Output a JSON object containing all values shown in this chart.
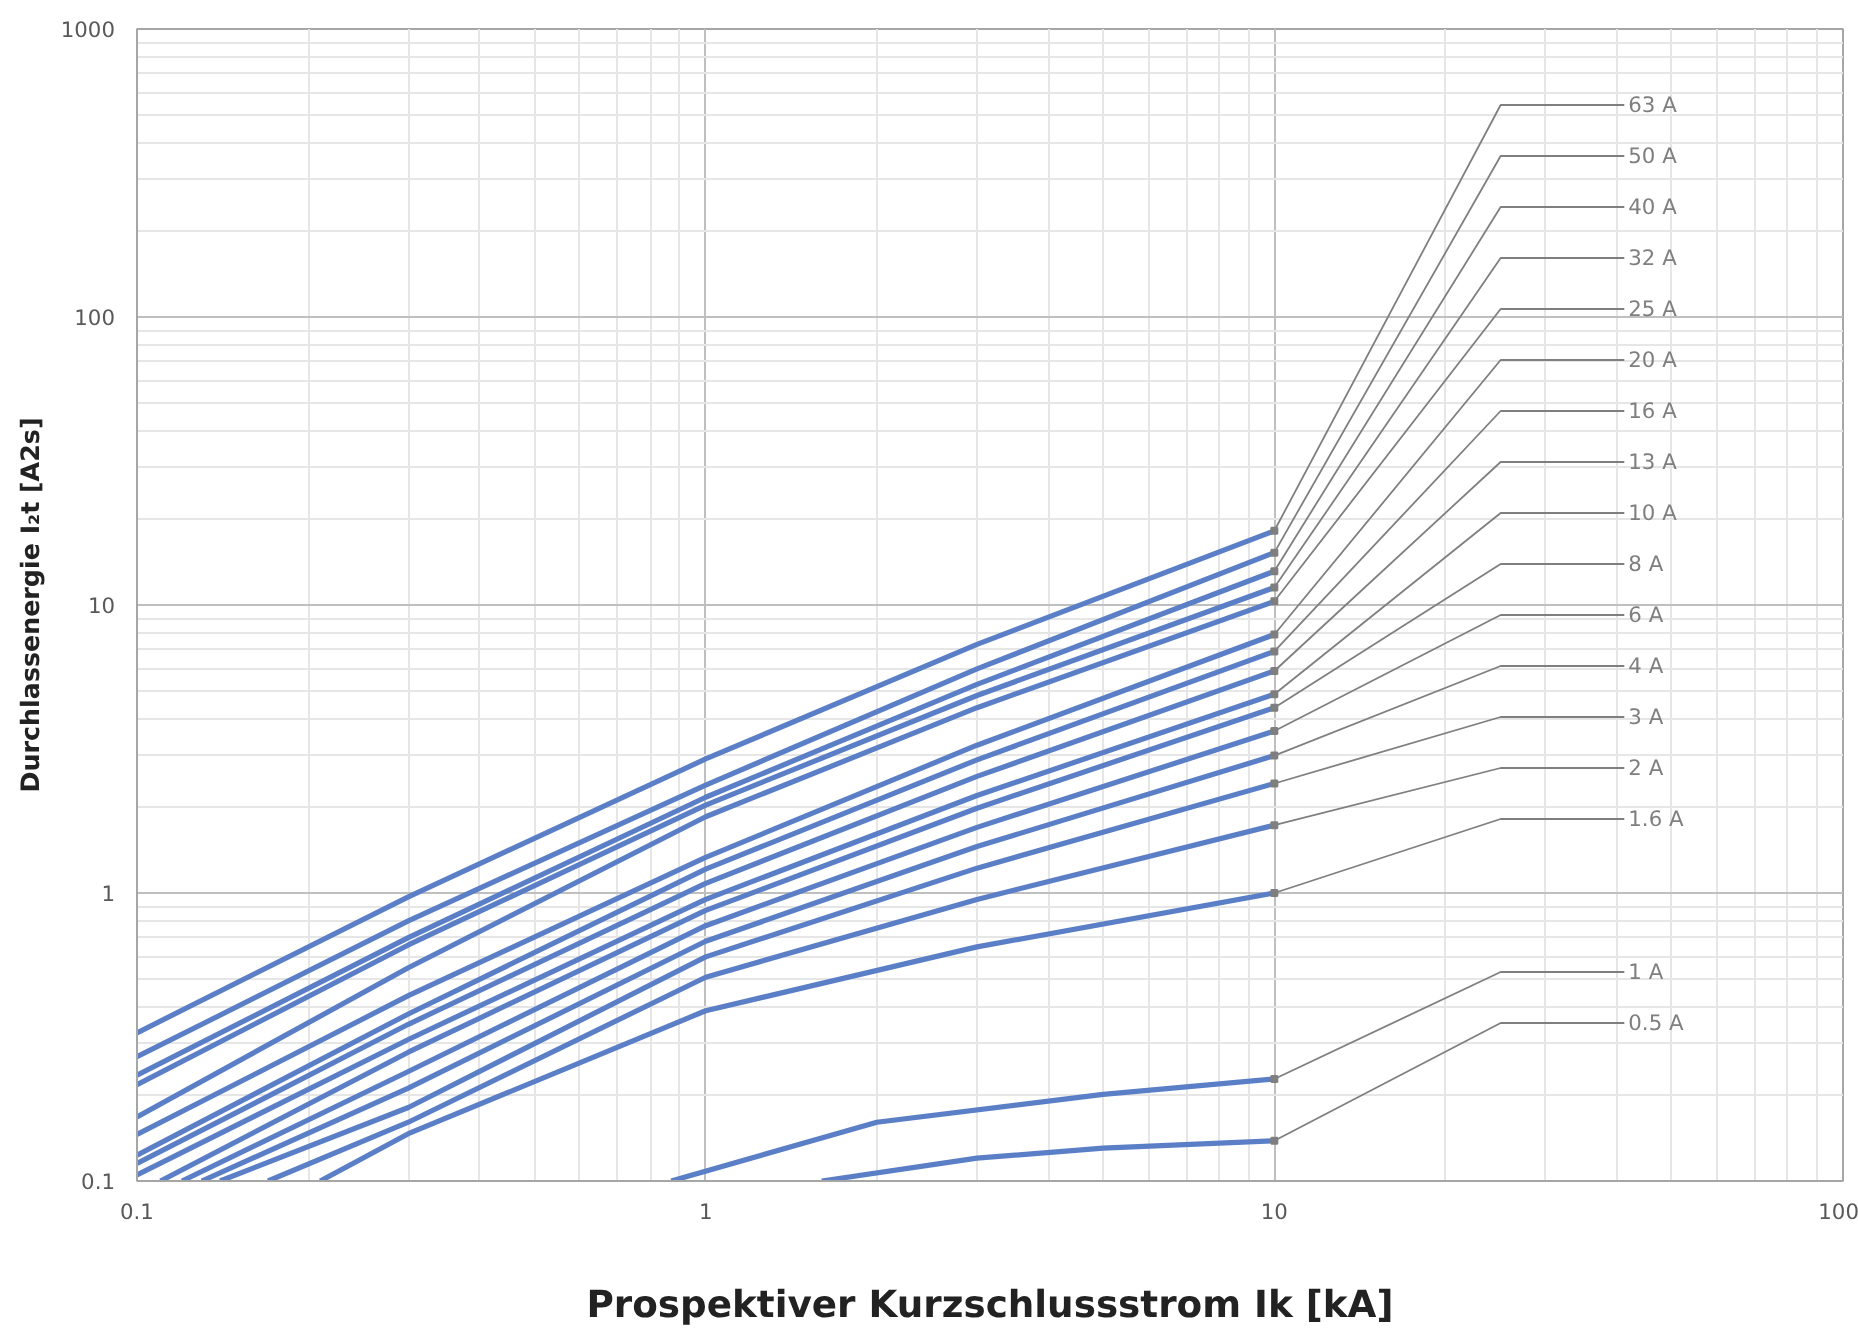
{
  "chart_data": {
    "type": "line",
    "xlabel": "Prospektiver Kurzschlussstrom Ik [kA]",
    "ylabel": "Durchlassenergie I₂t [A2s]",
    "log": "xy",
    "grid": true,
    "legend": false,
    "marker": "none",
    "line_style": "solid",
    "xlim": [
      0.1,
      100
    ],
    "ylim": [
      0.1,
      1000
    ],
    "xticks": [
      0.1,
      1,
      10,
      100
    ],
    "yticks": [
      0.1,
      1,
      10,
      100,
      1000
    ],
    "series": [
      {
        "name": "63 A",
        "color": "#5b7fc7",
        "x": [
          0.1,
          0.3,
          1,
          3,
          10
        ],
        "values": [
          0.327,
          0.97,
          2.92,
          7.3,
          18.1
        ]
      },
      {
        "name": "50 A",
        "color": "#5b7fc7",
        "x": [
          0.1,
          0.3,
          1,
          3,
          10
        ],
        "values": [
          0.27,
          0.8,
          2.37,
          6.0,
          15.2
        ]
      },
      {
        "name": "40 A",
        "color": "#5b7fc7",
        "x": [
          0.1,
          0.3,
          1,
          3,
          10
        ],
        "values": [
          0.233,
          0.7,
          2.15,
          5.3,
          13.1
        ]
      },
      {
        "name": "32 A",
        "color": "#5b7fc7",
        "x": [
          0.1,
          0.3,
          1,
          3,
          10
        ],
        "values": [
          0.216,
          0.66,
          2.02,
          4.85,
          11.5
        ]
      },
      {
        "name": "25 A",
        "color": "#5b7fc7",
        "x": [
          0.1,
          0.3,
          1,
          3,
          10
        ],
        "values": [
          0.167,
          0.55,
          1.84,
          4.4,
          10.3
        ]
      },
      {
        "name": "20 A",
        "color": "#5b7fc7",
        "x": [
          0.1,
          0.3,
          1,
          3,
          10
        ],
        "values": [
          0.145,
          0.44,
          1.33,
          3.26,
          7.9
        ]
      },
      {
        "name": "16 A",
        "color": "#5b7fc7",
        "x": [
          0.1,
          0.3,
          1,
          3,
          10
        ],
        "values": [
          0.123,
          0.38,
          1.21,
          2.9,
          6.9
        ]
      },
      {
        "name": "13 A",
        "color": "#5b7fc7",
        "x": [
          0.1,
          0.3,
          1,
          3,
          10
        ],
        "values": [
          0.115,
          0.35,
          1.08,
          2.54,
          5.9
        ]
      },
      {
        "name": "10 A",
        "color": "#5b7fc7",
        "x": [
          0.1,
          0.3,
          1,
          3,
          10
        ],
        "values": [
          0.105,
          0.31,
          0.95,
          2.18,
          4.9
        ]
      },
      {
        "name": "8 A",
        "color": "#5b7fc7",
        "x": [
          0.11,
          0.3,
          1,
          3,
          10
        ],
        "values": [
          0.1,
          0.28,
          0.87,
          1.97,
          4.4
        ]
      },
      {
        "name": "6 A",
        "color": "#5b7fc7",
        "x": [
          0.12,
          0.3,
          1,
          3,
          10
        ],
        "values": [
          0.1,
          0.24,
          0.77,
          1.69,
          3.65
        ]
      },
      {
        "name": "4 A",
        "color": "#5b7fc7",
        "x": [
          0.13,
          0.3,
          1,
          3,
          10
        ],
        "values": [
          0.1,
          0.21,
          0.68,
          1.45,
          3.0
        ]
      },
      {
        "name": "3 A",
        "color": "#5b7fc7",
        "x": [
          0.14,
          0.3,
          1,
          3,
          10
        ],
        "values": [
          0.1,
          0.18,
          0.6,
          1.22,
          2.4
        ]
      },
      {
        "name": "2 A",
        "color": "#5b7fc7",
        "x": [
          0.17,
          0.3,
          1,
          3,
          10
        ],
        "values": [
          0.1,
          0.16,
          0.51,
          0.95,
          1.72
        ]
      },
      {
        "name": "1.6 A",
        "color": "#5b7fc7",
        "x": [
          0.21,
          0.3,
          1,
          3,
          10
        ],
        "values": [
          0.1,
          0.146,
          0.39,
          0.65,
          1.0
        ]
      },
      {
        "name": "1 A",
        "color": "#5b7fc7",
        "x": [
          0.87,
          2,
          5,
          10
        ],
        "values": [
          0.1,
          0.16,
          0.2,
          0.226
        ]
      },
      {
        "name": "0.5 A",
        "color": "#5b7fc7",
        "x": [
          1.6,
          3,
          5,
          10
        ],
        "values": [
          0.1,
          0.12,
          0.13,
          0.138
        ]
      }
    ]
  }
}
